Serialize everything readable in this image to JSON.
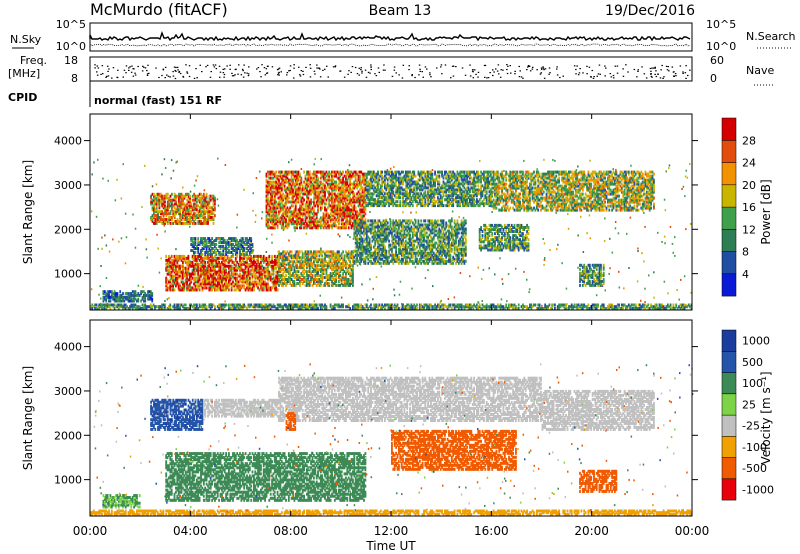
{
  "header": {
    "station": "McMurdo (fitACF)",
    "beam": "Beam 13",
    "date": "19/Dec/2016"
  },
  "noise_panel": {
    "left_label": "N.Sky",
    "right_label": "N.Search",
    "left_ticks": [
      "10^5",
      "10^0"
    ],
    "right_ticks": [
      "10^5",
      "10^0"
    ]
  },
  "freq_panel": {
    "left_label_1": "Freq.",
    "left_label_2": "[MHz]",
    "right_label": "Nave",
    "left_ticks": [
      "18",
      "8"
    ],
    "right_ticks": [
      "60",
      "0"
    ]
  },
  "cpid": {
    "label": "CPID",
    "text": "normal (fast) 151 RF"
  },
  "colors": {
    "power_scale": [
      "#0a1bd8",
      "#1f4ea3",
      "#2f7d55",
      "#3ea04b",
      "#c9b400",
      "#f39200",
      "#e24d0c",
      "#d40000"
    ],
    "velocity_scale": [
      "#e8000a",
      "#f05a00",
      "#f0a000",
      "#c0c0c0",
      "#7dd347",
      "#3c8a55",
      "#2555aa",
      "#1a3c9c"
    ]
  },
  "chart_data": [
    {
      "type": "heatmap",
      "title": "Power",
      "ylabel": "Slant Range [km]",
      "ylim": [
        180,
        4600
      ],
      "y_ticks": [
        "1000",
        "2000",
        "3000",
        "4000"
      ],
      "xlim": [
        "00:00",
        "24:00"
      ],
      "colorbar": {
        "label": "Power [dB]",
        "ticks": [
          "4",
          "8",
          "12",
          "16",
          "20",
          "24",
          "28"
        ],
        "range": [
          0,
          32
        ]
      },
      "echo_regions": [
        {
          "t_start": 0.5,
          "t_end": 2.5,
          "range_start": 350,
          "range_end": 600,
          "level": 8
        },
        {
          "t_start": 2.4,
          "t_end": 5.0,
          "range_start": 2100,
          "range_end": 2800,
          "level": 22
        },
        {
          "t_start": 3.0,
          "t_end": 7.5,
          "range_start": 600,
          "range_end": 1400,
          "level": 26
        },
        {
          "t_start": 4.0,
          "t_end": 6.5,
          "range_start": 1400,
          "range_end": 1800,
          "level": 10
        },
        {
          "t_start": 7.0,
          "t_end": 11.0,
          "range_start": 2000,
          "range_end": 3300,
          "level": 24
        },
        {
          "t_start": 7.5,
          "t_end": 10.5,
          "range_start": 700,
          "range_end": 1500,
          "level": 16
        },
        {
          "t_start": 10.5,
          "t_end": 15.0,
          "range_start": 1200,
          "range_end": 2200,
          "level": 12
        },
        {
          "t_start": 11.0,
          "t_end": 16.0,
          "range_start": 2500,
          "range_end": 3300,
          "level": 12
        },
        {
          "t_start": 15.5,
          "t_end": 17.5,
          "range_start": 1500,
          "range_end": 2100,
          "level": 12
        },
        {
          "t_start": 16.0,
          "t_end": 22.5,
          "range_start": 2400,
          "range_end": 3300,
          "level": 16
        },
        {
          "t_start": 19.5,
          "t_end": 20.5,
          "range_start": 700,
          "range_end": 1200,
          "level": 12
        },
        {
          "t_start": 0.0,
          "t_end": 24.0,
          "range_start": 180,
          "range_end": 300,
          "level": 12
        }
      ]
    },
    {
      "type": "heatmap",
      "title": "Velocity",
      "ylabel": "Slant Range [km]",
      "xlabel": "Time UT",
      "ylim": [
        180,
        4600
      ],
      "y_ticks": [
        "1000",
        "2000",
        "3000",
        "4000"
      ],
      "x_ticks": [
        "00:00",
        "04:00",
        "08:00",
        "12:00",
        "16:00",
        "20:00",
        "00:00"
      ],
      "colorbar": {
        "label": "Velocity [m s⁻¹]",
        "ticks": [
          "1000",
          "500",
          "100",
          "25",
          "-25",
          "-100",
          "-500",
          "-1000"
        ]
      },
      "echo_regions": [
        {
          "t_start": 0.5,
          "t_end": 2.0,
          "range_start": 350,
          "range_end": 650,
          "level": 100
        },
        {
          "t_start": 2.4,
          "t_end": 4.5,
          "range_start": 2100,
          "range_end": 2800,
          "level": 800
        },
        {
          "t_start": 3.0,
          "t_end": 7.5,
          "range_start": 500,
          "range_end": 1600,
          "level": 300
        },
        {
          "t_start": 4.5,
          "t_end": 7.5,
          "range_start": 2400,
          "range_end": 2800,
          "level": 0
        },
        {
          "t_start": 7.5,
          "t_end": 11.0,
          "range_start": 500,
          "range_end": 1600,
          "level": 300
        },
        {
          "t_start": 7.5,
          "t_end": 18.0,
          "range_start": 2300,
          "range_end": 3300,
          "level": 0
        },
        {
          "t_start": 7.8,
          "t_end": 8.2,
          "range_start": 2100,
          "range_end": 2500,
          "level": -300
        },
        {
          "t_start": 12.0,
          "t_end": 17.0,
          "range_start": 1200,
          "range_end": 2100,
          "level": -300
        },
        {
          "t_start": 18.0,
          "t_end": 22.5,
          "range_start": 2100,
          "range_end": 3000,
          "level": 0
        },
        {
          "t_start": 19.5,
          "t_end": 21.0,
          "range_start": 700,
          "range_end": 1200,
          "level": -300
        },
        {
          "t_start": 0.0,
          "t_end": 24.0,
          "range_start": 180,
          "range_end": 300,
          "level": -50
        }
      ]
    }
  ]
}
